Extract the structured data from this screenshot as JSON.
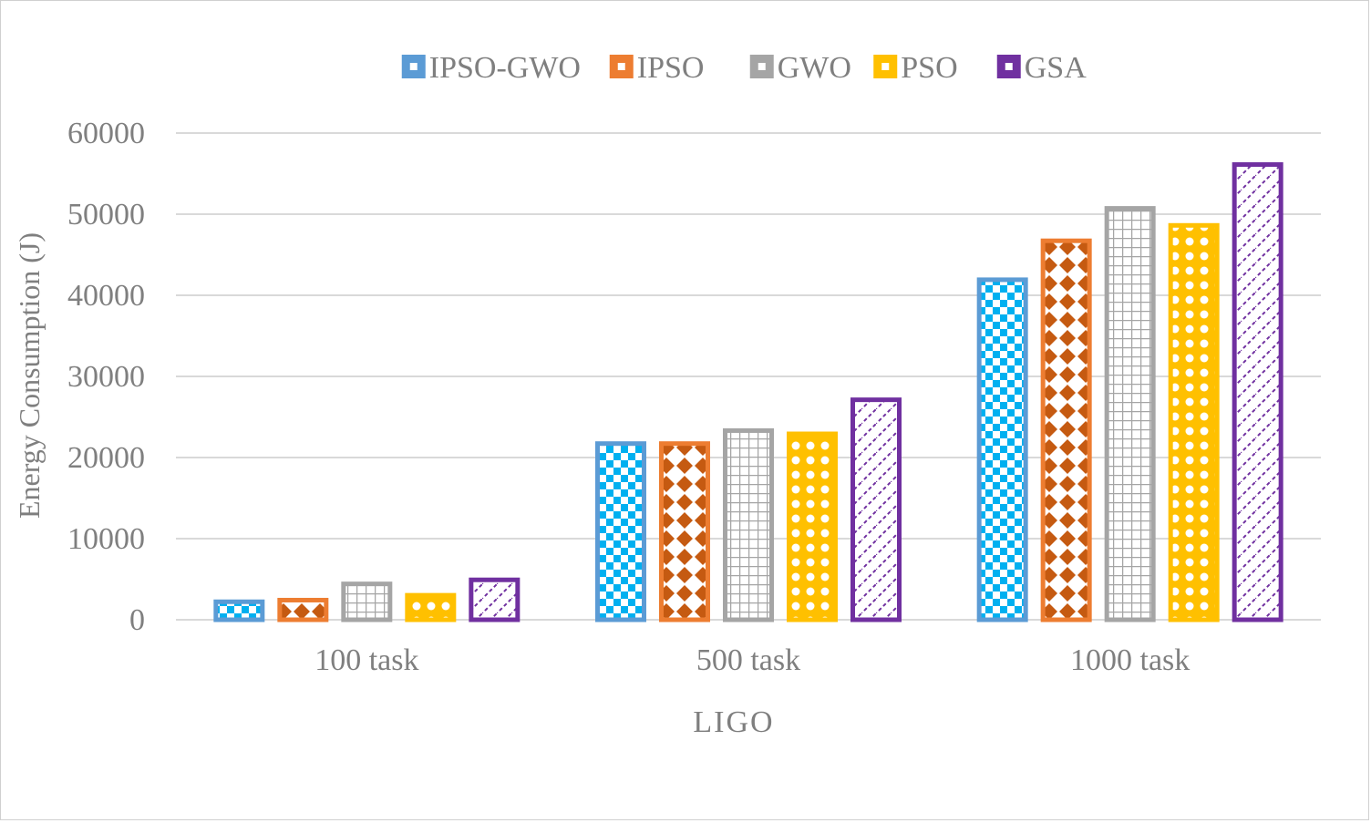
{
  "chart_data": {
    "type": "bar",
    "xlabel": "LIGO",
    "ylabel": "Energy Consumption (J)",
    "categories": [
      "100 task",
      "500 task",
      "1000 task"
    ],
    "ylim": [
      0,
      60000
    ],
    "yticks": [
      "0",
      "10000",
      "20000",
      "30000",
      "40000",
      "50000",
      "60000"
    ],
    "grid": true,
    "legend_position": "top",
    "series": [
      {
        "name": "IPSO-GWO",
        "values": [
          2500,
          22000,
          42200
        ],
        "color": "#5b9bd5",
        "pattern": "checker"
      },
      {
        "name": "IPSO",
        "values": [
          2700,
          22000,
          47000
        ],
        "color": "#ed7d31",
        "pattern": "diamond"
      },
      {
        "name": "GWO",
        "values": [
          4700,
          23600,
          51000
        ],
        "color": "#a5a5a5",
        "pattern": "grid"
      },
      {
        "name": "PSO",
        "values": [
          3300,
          23200,
          48900
        ],
        "color": "#ffc000",
        "pattern": "circles"
      },
      {
        "name": "GSA",
        "values": [
          5200,
          27400,
          56400
        ],
        "color": "#7030a0",
        "pattern": "diagonal"
      }
    ]
  }
}
